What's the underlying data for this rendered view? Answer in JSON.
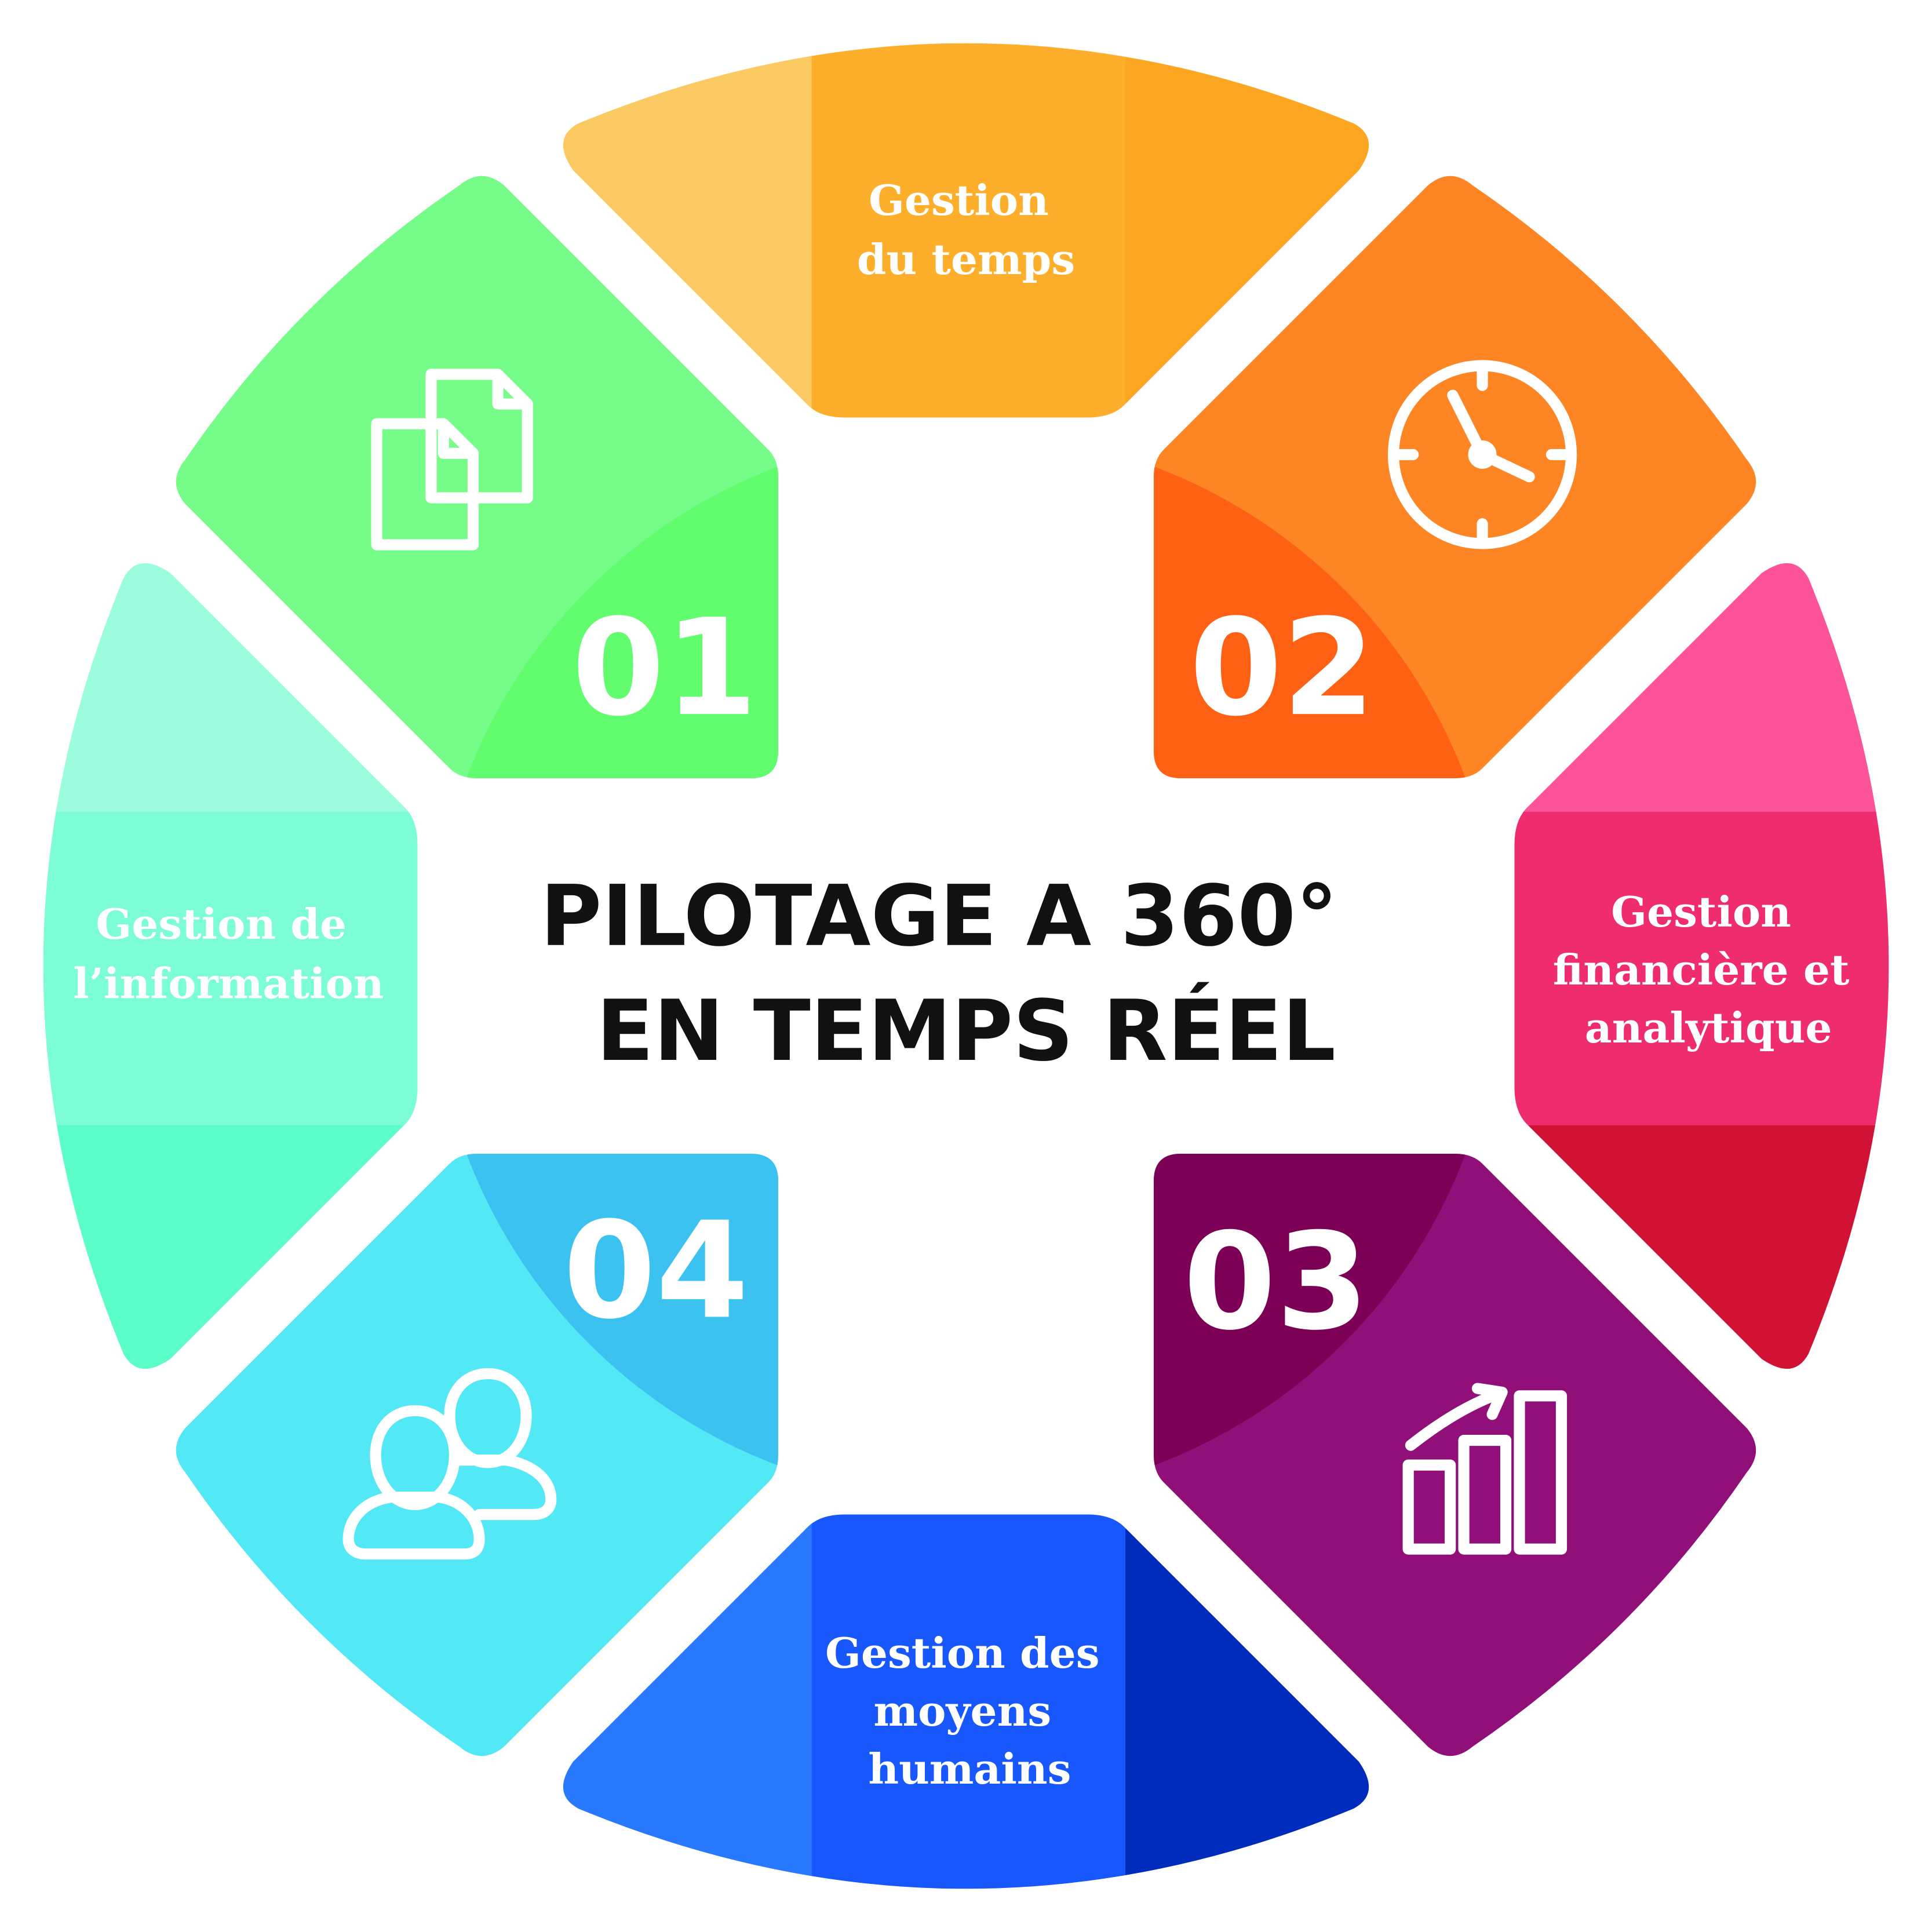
{
  "title": {
    "line1": "PILOTAGE A 360°",
    "line2": "EN TEMPS RÉEL"
  },
  "segments": {
    "top": {
      "lines": [
        "Gestion",
        "du temps"
      ],
      "colors": [
        "#FCCA62",
        "#FDAF2B",
        "#FCA621"
      ]
    },
    "right": {
      "lines": [
        "Gestion",
        "financière et",
        "analytique"
      ],
      "colors": [
        "#FD5399",
        "#EF2D6E",
        "#D21234"
      ]
    },
    "bottom": {
      "lines": [
        "Gestion des",
        "moyens",
        "humains"
      ],
      "colors": [
        "#2879FD",
        "#1857FC",
        "#002CBE"
      ]
    },
    "left": {
      "lines": [
        "Gestion de",
        "l’information"
      ],
      "colors": [
        "#9BFDDE",
        "#7DFDD5",
        "#5BFDC9"
      ]
    }
  },
  "tiles": [
    {
      "number": "01",
      "icon": "documents-icon",
      "colors": [
        "#76FD89",
        "#61FD6F"
      ]
    },
    {
      "number": "02",
      "icon": "clock-icon",
      "colors": [
        "#FD8523",
        "#FE6114"
      ]
    },
    {
      "number": "03",
      "icon": "bar-chart-icon",
      "colors": [
        "#900F78",
        "#7C0055"
      ]
    },
    {
      "number": "04",
      "icon": "users-icon",
      "colors": [
        "#52E8F5",
        "#3BC2F1"
      ]
    }
  ]
}
